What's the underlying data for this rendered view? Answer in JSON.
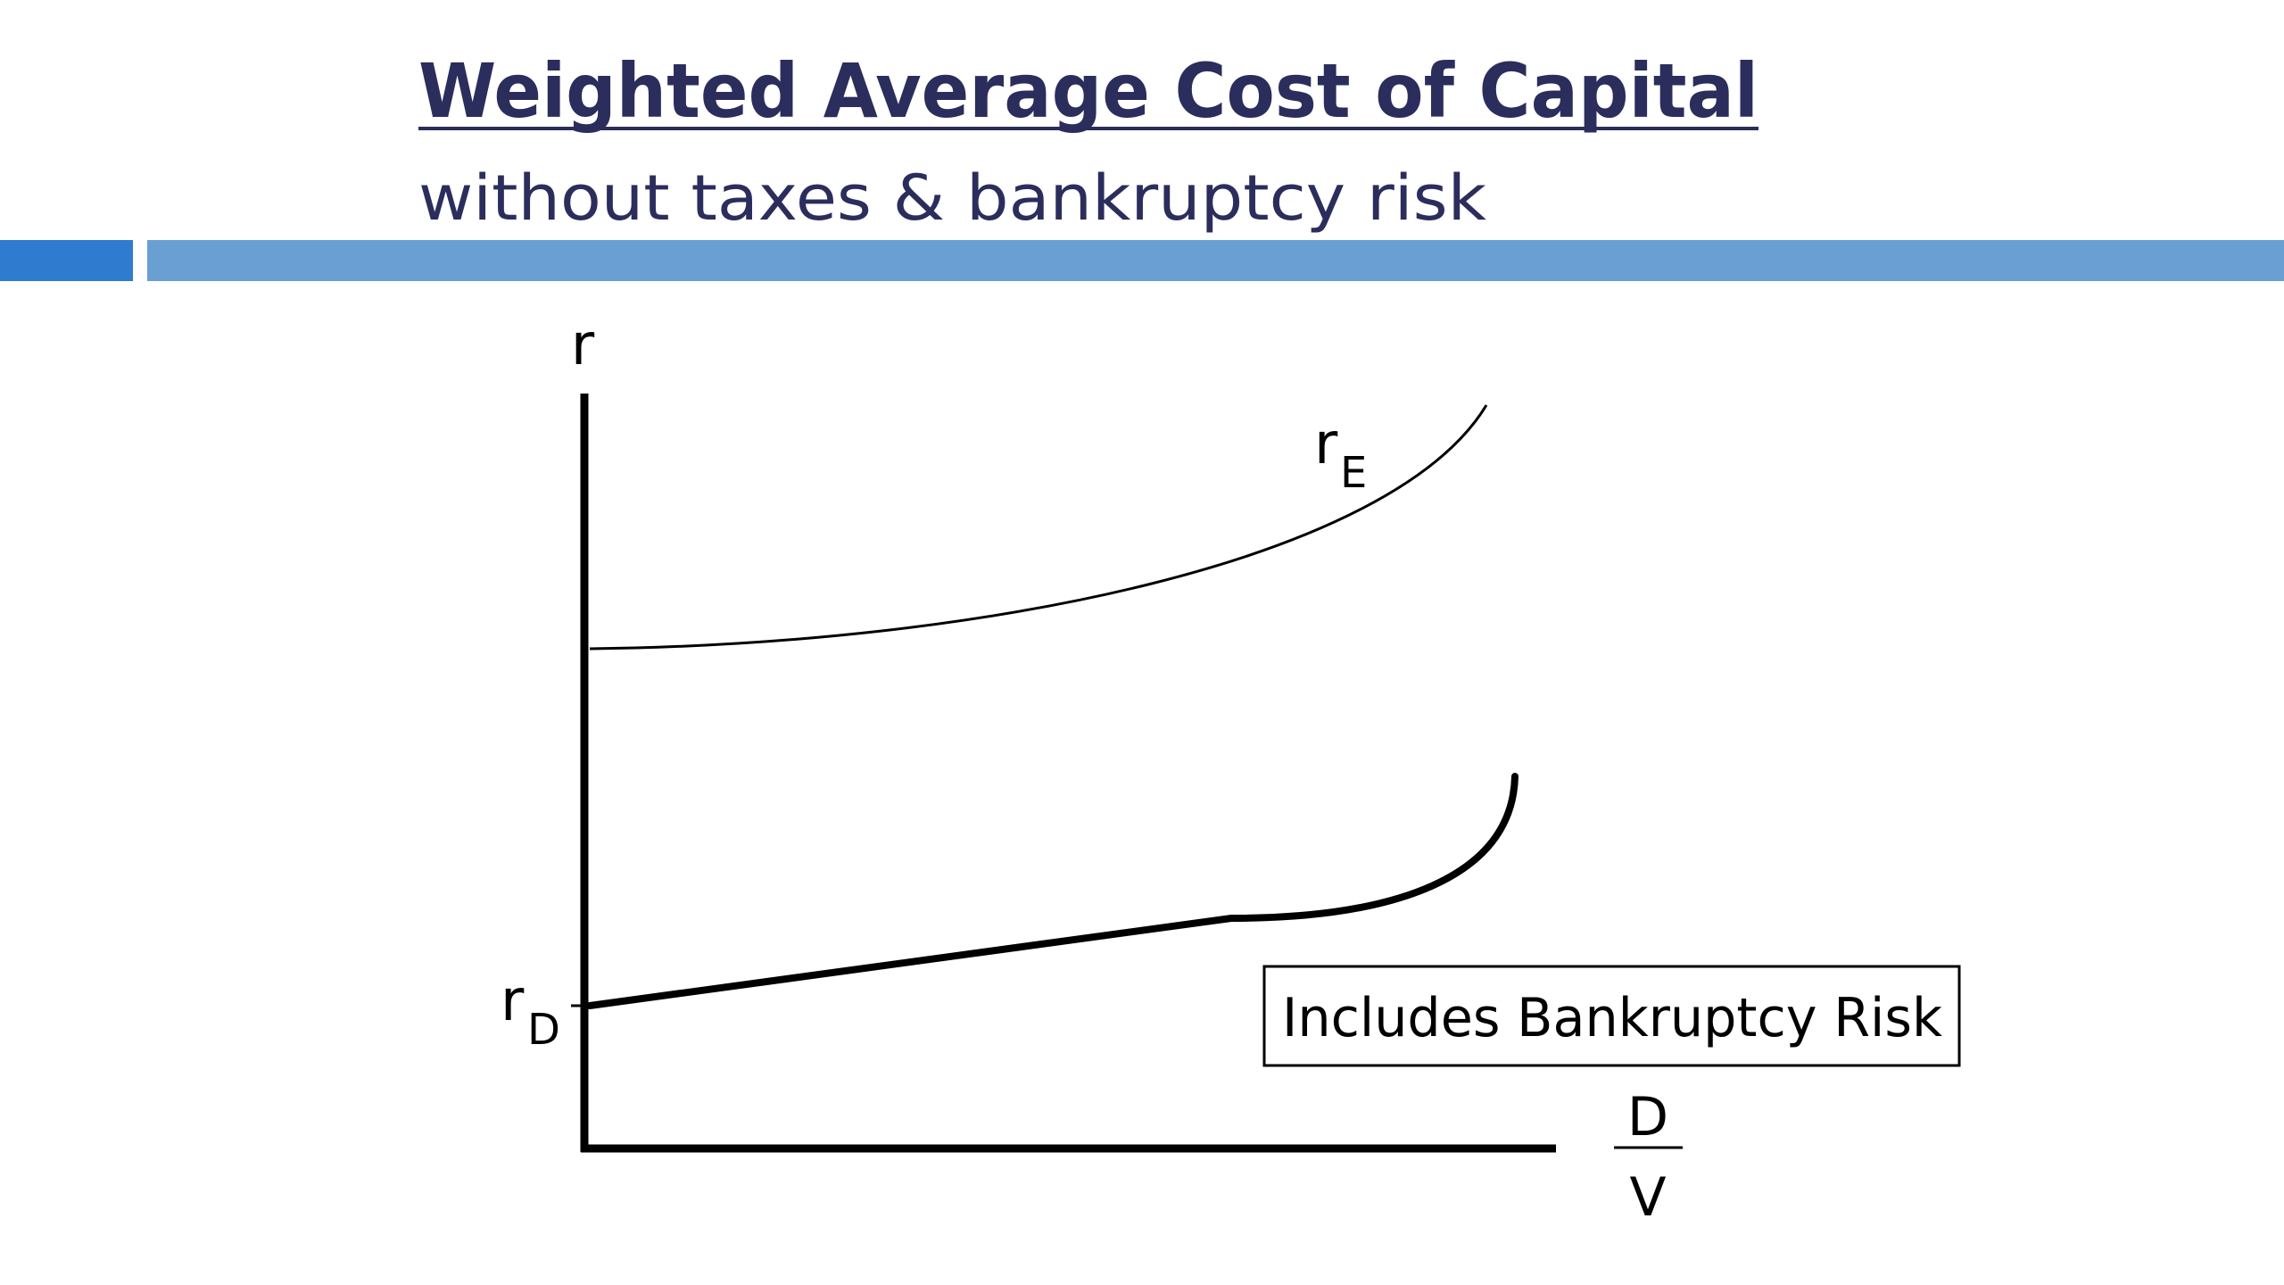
{
  "header": {
    "title": "Weighted Average Cost of Capital",
    "subtitle": "without taxes & bankruptcy risk"
  },
  "diagram": {
    "y_axis_label": "r",
    "x_axis_label": {
      "numerator": "D",
      "denominator": "V"
    },
    "equity_curve": {
      "symbol": "r",
      "subscript": "E"
    },
    "debt_curve": {
      "symbol": "r",
      "subscript": "D"
    },
    "note": "Includes Bankruptcy Risk"
  }
}
